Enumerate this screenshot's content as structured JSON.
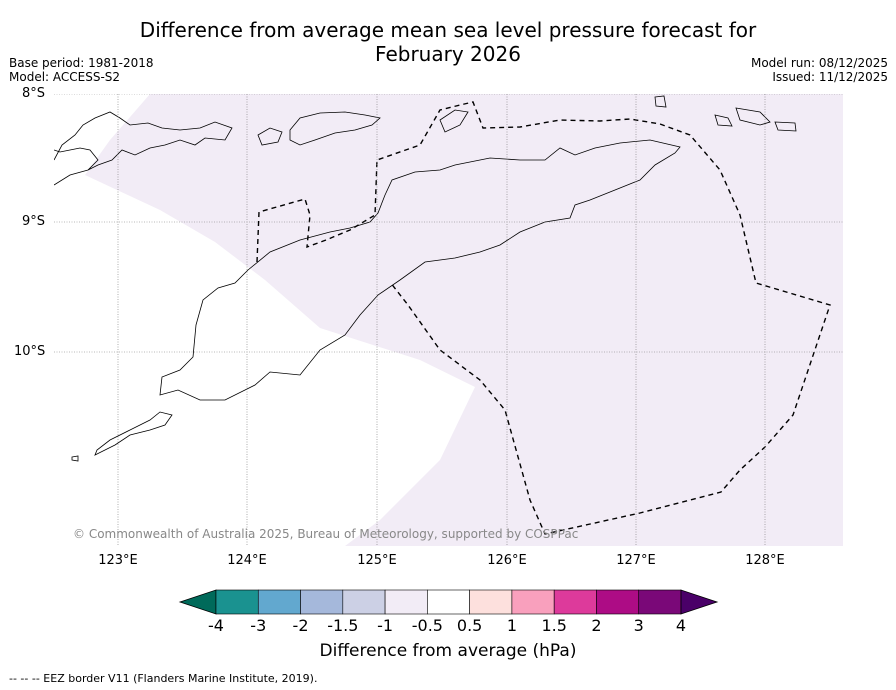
{
  "title_line1": "Difference from average mean sea level pressure forecast for",
  "title_line2": "February 2026",
  "base_period": "Base period: 1981-2018",
  "model": "Model: ACCESS-S2",
  "model_run": "Model run: 08/12/2025",
  "issued": "Issued: 11/12/2025",
  "latitudes": [
    "8°S",
    "9°S",
    "10°S"
  ],
  "longitudes": [
    "123°E",
    "124°E",
    "125°E",
    "126°E",
    "127°E",
    "128°E"
  ],
  "copyright": "© Commonwealth of Australia 2025, Bureau of Meteorology, supported by COSPPac",
  "legend": {
    "title": "Difference from average (hPa)",
    "ticks": [
      "-4",
      "-3",
      "-2",
      "-1.5",
      "-1",
      "-0.5",
      "0.5",
      "1",
      "1.5",
      "2",
      "3",
      "4"
    ],
    "colors": [
      "#006a5a",
      "#1a9290",
      "#62a8cf",
      "#a5b8db",
      "#ccd0e5",
      "#f2ecf6",
      "#ffffff",
      "#fde0dd",
      "#f9a0bd",
      "#dd3a9b",
      "#ad0c85",
      "#7a0878",
      "#4a0068"
    ]
  },
  "anomaly_fill_color": "#f2ecf6",
  "footnote": "--  --  -- EEZ border V11 (Flanders Marine Institute, 2019)."
}
